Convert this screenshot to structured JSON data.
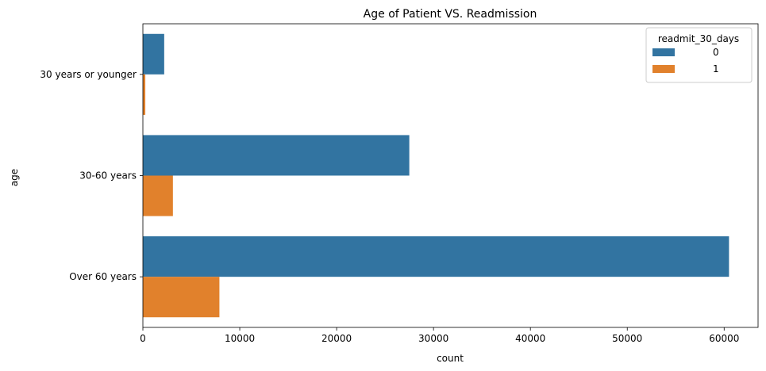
{
  "chart_data": {
    "type": "bar",
    "orientation": "horizontal",
    "title": "Age of Patient VS. Readmission",
    "xlabel": "count",
    "ylabel": "age",
    "categories": [
      "30 years or younger",
      "30-60 years",
      "Over 60 years"
    ],
    "series": [
      {
        "name": "0",
        "color": "#3274a1",
        "values": [
          2200,
          27500,
          60500
        ]
      },
      {
        "name": "1",
        "color": "#e1812c",
        "values": [
          250,
          3100,
          7900
        ]
      }
    ],
    "xlim": [
      0,
      63500
    ],
    "xticks": [
      0,
      10000,
      20000,
      30000,
      40000,
      50000,
      60000
    ],
    "legend": {
      "title": "readmit_30_days",
      "placement": "top-right"
    },
    "grid": false
  }
}
